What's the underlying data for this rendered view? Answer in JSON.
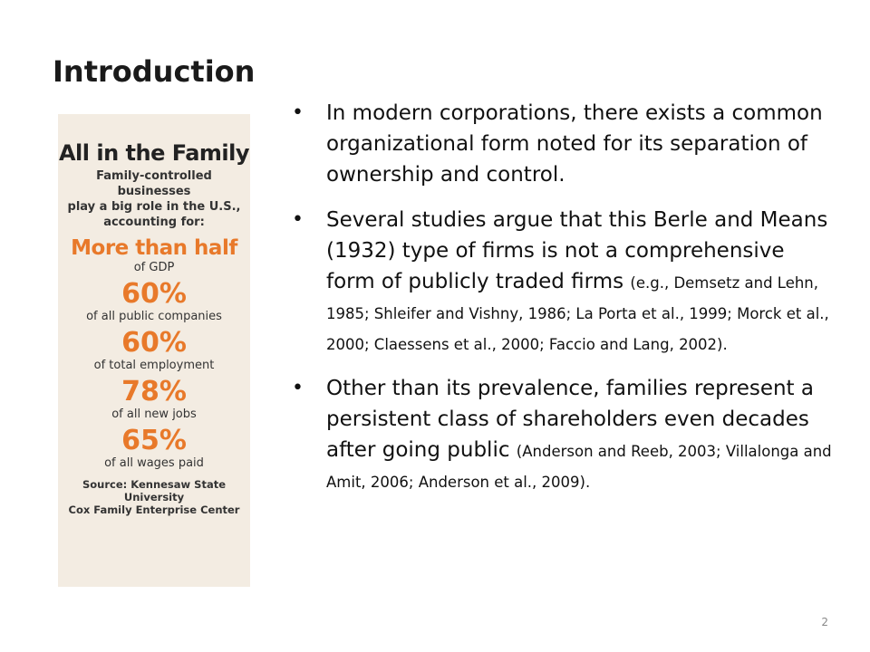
{
  "slide": {
    "title": "Introduction",
    "page_number": "2"
  },
  "infographic": {
    "title": "All in the Family",
    "intro_lines": [
      "Family-controlled businesses",
      "play a big role in the U.S.,",
      "accounting for:"
    ],
    "headline": "More than half",
    "headline_desc": "of GDP",
    "stats": [
      {
        "value": "60%",
        "desc": "of all public companies"
      },
      {
        "value": "60%",
        "desc": "of total employment"
      },
      {
        "value": "78%",
        "desc": "of all new jobs"
      },
      {
        "value": "65%",
        "desc": "of all wages paid"
      }
    ],
    "source_lines": [
      "Source: Kennesaw State University",
      "Cox Family Enterprise Center"
    ],
    "colors": {
      "background": "#f3ece2",
      "accent": "#e8792a"
    }
  },
  "bullets": [
    {
      "text": "In modern corporations, there exists a common organizational form noted for its separation of ownership and control.",
      "citation": ""
    },
    {
      "text": "Several studies argue that this Berle and Means (1932) type of firms is not a comprehensive form of publicly traded firms ",
      "citation": "(e.g., Demsetz and Lehn, 1985; Shleifer and Vishny, 1986; La Porta et al., 1999; Morck et al., 2000; Claessens et al., 2000; Faccio and Lang, 2002)."
    },
    {
      "text": "Other than its prevalence, families represent a persistent class of shareholders even decades after going public ",
      "citation": "(Anderson and Reeb, 2003; Villalonga and Amit, 2006; Anderson et al., 2009)."
    }
  ],
  "bullet_glyph": "•"
}
